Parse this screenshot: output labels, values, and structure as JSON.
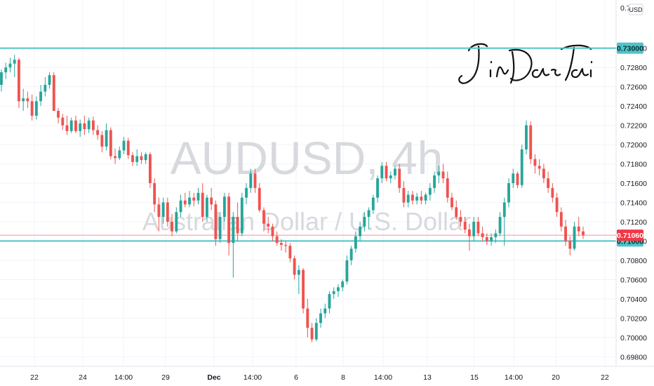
{
  "chart_data": {
    "type": "candlestick",
    "symbol": "AUDUSD",
    "interval": "4h",
    "watermark_symbol": "AUDUSD, 4h",
    "watermark_description": "Australian Dollar / U.S. Dollar",
    "currency": "USD",
    "y_axis": {
      "range": [
        0.697,
        0.735
      ],
      "ticks": [
        "0.69800",
        "0.70000",
        "0.70200",
        "0.70400",
        "0.70600",
        "0.70800",
        "0.71000",
        "0.71200",
        "0.71400",
        "0.71600",
        "0.71800",
        "0.72000",
        "0.72200",
        "0.72400",
        "0.72600",
        "0.72800",
        "0.73000"
      ],
      "top_partial_label": "0.7"
    },
    "x_axis_labels": [
      {
        "text": "22",
        "bold": false
      },
      {
        "text": "24",
        "bold": false
      },
      {
        "text": "14:00",
        "bold": false
      },
      {
        "text": "29",
        "bold": false
      },
      {
        "text": "Dec",
        "bold": true
      },
      {
        "text": "14:00",
        "bold": false
      },
      {
        "text": "6",
        "bold": false
      },
      {
        "text": "8",
        "bold": false
      },
      {
        "text": "14:00",
        "bold": false
      },
      {
        "text": "13",
        "bold": false
      },
      {
        "text": "15",
        "bold": false
      },
      {
        "text": "14:00",
        "bold": false
      },
      {
        "text": "20",
        "bold": false
      },
      {
        "text": "22",
        "bold": false
      }
    ],
    "horizontal_lines": [
      {
        "price": 0.73,
        "label": "0.73000",
        "color": "#4fc3c8"
      },
      {
        "price": 0.71,
        "label": "0.71000",
        "color": "#4fc3c8"
      }
    ],
    "current_price": {
      "price": 0.7106,
      "label": "0.71060",
      "color": "#f23645"
    },
    "candle_colors": {
      "up": "#26a69a",
      "down": "#ef5350"
    },
    "candles": [
      [
        0.7262,
        0.7278,
        0.7255,
        0.7275
      ],
      [
        0.7275,
        0.7285,
        0.7268,
        0.728
      ],
      [
        0.728,
        0.729,
        0.7275,
        0.7284
      ],
      [
        0.7284,
        0.7293,
        0.727,
        0.7288
      ],
      [
        0.7288,
        0.729,
        0.7238,
        0.7245
      ],
      [
        0.7245,
        0.7258,
        0.7235,
        0.7248
      ],
      [
        0.7248,
        0.7255,
        0.7238,
        0.7245
      ],
      [
        0.7245,
        0.7252,
        0.7225,
        0.723
      ],
      [
        0.723,
        0.725,
        0.7226,
        0.7245
      ],
      [
        0.7245,
        0.7262,
        0.724,
        0.7255
      ],
      [
        0.7255,
        0.727,
        0.725,
        0.7262
      ],
      [
        0.7262,
        0.7275,
        0.7258,
        0.7272
      ],
      [
        0.7272,
        0.7275,
        0.7235,
        0.7235
      ],
      [
        0.7235,
        0.7238,
        0.7222,
        0.7228
      ],
      [
        0.7228,
        0.7232,
        0.7215,
        0.722
      ],
      [
        0.722,
        0.723,
        0.721,
        0.7214
      ],
      [
        0.7214,
        0.7228,
        0.7212,
        0.7225
      ],
      [
        0.7225,
        0.723,
        0.7212,
        0.7214
      ],
      [
        0.7214,
        0.7226,
        0.7208,
        0.7222
      ],
      [
        0.7222,
        0.723,
        0.721,
        0.7216
      ],
      [
        0.7216,
        0.7228,
        0.7212,
        0.7225
      ],
      [
        0.7225,
        0.7229,
        0.721,
        0.7215
      ],
      [
        0.7215,
        0.722,
        0.7205,
        0.721
      ],
      [
        0.721,
        0.7214,
        0.7192,
        0.7198
      ],
      [
        0.7198,
        0.7222,
        0.7194,
        0.7215
      ],
      [
        0.7215,
        0.7218,
        0.7185,
        0.7188
      ],
      [
        0.7188,
        0.7196,
        0.718,
        0.7186
      ],
      [
        0.7186,
        0.7198,
        0.7184,
        0.7194
      ],
      [
        0.7194,
        0.7208,
        0.719,
        0.7204
      ],
      [
        0.7204,
        0.7207,
        0.7185,
        0.7189
      ],
      [
        0.7189,
        0.7192,
        0.7178,
        0.7182
      ],
      [
        0.7182,
        0.7195,
        0.7178,
        0.7188
      ],
      [
        0.7188,
        0.7192,
        0.718,
        0.7184
      ],
      [
        0.7184,
        0.7192,
        0.718,
        0.719
      ],
      [
        0.719,
        0.7192,
        0.7155,
        0.716
      ],
      [
        0.716,
        0.7165,
        0.713,
        0.7138
      ],
      [
        0.7138,
        0.7145,
        0.711,
        0.7125
      ],
      [
        0.7125,
        0.7145,
        0.7118,
        0.714
      ],
      [
        0.714,
        0.7145,
        0.7115,
        0.712
      ],
      [
        0.712,
        0.7128,
        0.7105,
        0.711
      ],
      [
        0.711,
        0.7135,
        0.7108,
        0.713
      ],
      [
        0.713,
        0.7148,
        0.7125,
        0.7142
      ],
      [
        0.7142,
        0.715,
        0.7135,
        0.7138
      ],
      [
        0.7138,
        0.7152,
        0.7135,
        0.7145
      ],
      [
        0.7145,
        0.715,
        0.7136,
        0.7142
      ],
      [
        0.7142,
        0.7155,
        0.7138,
        0.715
      ],
      [
        0.715,
        0.716,
        0.712,
        0.7125
      ],
      [
        0.7125,
        0.7148,
        0.712,
        0.7145
      ],
      [
        0.7145,
        0.7155,
        0.7132,
        0.7138
      ],
      [
        0.7138,
        0.7142,
        0.7095,
        0.7102
      ],
      [
        0.7102,
        0.713,
        0.7098,
        0.7125
      ],
      [
        0.7125,
        0.715,
        0.712,
        0.7146
      ],
      [
        0.7146,
        0.715,
        0.7085,
        0.7098
      ],
      [
        0.7098,
        0.713,
        0.7062,
        0.7125
      ],
      [
        0.7125,
        0.714,
        0.71,
        0.7108
      ],
      [
        0.7108,
        0.715,
        0.7105,
        0.7145
      ],
      [
        0.7145,
        0.716,
        0.7138,
        0.7155
      ],
      [
        0.7155,
        0.7175,
        0.715,
        0.717
      ],
      [
        0.717,
        0.7175,
        0.715,
        0.7155
      ],
      [
        0.7155,
        0.716,
        0.713,
        0.7132
      ],
      [
        0.7132,
        0.7135,
        0.711,
        0.7118
      ],
      [
        0.7118,
        0.7125,
        0.7108,
        0.7115
      ],
      [
        0.7115,
        0.7118,
        0.71,
        0.7105
      ],
      [
        0.7105,
        0.711,
        0.7095,
        0.7098
      ],
      [
        0.7098,
        0.7102,
        0.709,
        0.7096
      ],
      [
        0.7096,
        0.71,
        0.7088,
        0.7095
      ],
      [
        0.7095,
        0.7098,
        0.7078,
        0.7082
      ],
      [
        0.7082,
        0.7085,
        0.706,
        0.7065
      ],
      [
        0.7065,
        0.7075,
        0.7045,
        0.707
      ],
      [
        0.707,
        0.7072,
        0.7025,
        0.703
      ],
      [
        0.703,
        0.704,
        0.7,
        0.701
      ],
      [
        0.701,
        0.7015,
        0.6995,
        0.6998
      ],
      [
        0.6998,
        0.702,
        0.6996,
        0.7015
      ],
      [
        0.7015,
        0.703,
        0.701,
        0.7025
      ],
      [
        0.7025,
        0.7035,
        0.702,
        0.703
      ],
      [
        0.703,
        0.7048,
        0.7025,
        0.7045
      ],
      [
        0.7045,
        0.7052,
        0.704,
        0.7048
      ],
      [
        0.7048,
        0.7055,
        0.7042,
        0.7052
      ],
      [
        0.7052,
        0.706,
        0.7048,
        0.7058
      ],
      [
        0.7058,
        0.7085,
        0.7055,
        0.708
      ],
      [
        0.708,
        0.7095,
        0.7075,
        0.7092
      ],
      [
        0.7092,
        0.711,
        0.7088,
        0.7105
      ],
      [
        0.7105,
        0.712,
        0.71,
        0.7115
      ],
      [
        0.7115,
        0.713,
        0.711,
        0.7125
      ],
      [
        0.7125,
        0.7135,
        0.7112,
        0.7132
      ],
      [
        0.7132,
        0.7148,
        0.7128,
        0.7145
      ],
      [
        0.7145,
        0.7168,
        0.714,
        0.7165
      ],
      [
        0.7165,
        0.7182,
        0.716,
        0.7178
      ],
      [
        0.7178,
        0.7182,
        0.7162,
        0.7165
      ],
      [
        0.7165,
        0.7172,
        0.716,
        0.7168
      ],
      [
        0.7168,
        0.7178,
        0.7164,
        0.7175
      ],
      [
        0.7175,
        0.718,
        0.715,
        0.7155
      ],
      [
        0.7155,
        0.7162,
        0.7135,
        0.714
      ],
      [
        0.714,
        0.7152,
        0.7135,
        0.7148
      ],
      [
        0.7148,
        0.7152,
        0.7138,
        0.7142
      ],
      [
        0.7142,
        0.715,
        0.7138,
        0.7146
      ],
      [
        0.7146,
        0.7152,
        0.7138,
        0.7142
      ],
      [
        0.7142,
        0.715,
        0.7138,
        0.7148
      ],
      [
        0.7148,
        0.716,
        0.7142,
        0.7155
      ],
      [
        0.7155,
        0.7172,
        0.715,
        0.7168
      ],
      [
        0.7168,
        0.7178,
        0.716,
        0.7172
      ],
      [
        0.7172,
        0.718,
        0.716,
        0.7165
      ],
      [
        0.7165,
        0.7172,
        0.714,
        0.7145
      ],
      [
        0.7145,
        0.715,
        0.7132,
        0.7135
      ],
      [
        0.7135,
        0.7142,
        0.7122,
        0.7125
      ],
      [
        0.7125,
        0.7132,
        0.7115,
        0.712
      ],
      [
        0.712,
        0.7125,
        0.7108,
        0.7112
      ],
      [
        0.7112,
        0.7118,
        0.709,
        0.7105
      ],
      [
        0.7105,
        0.7125,
        0.71,
        0.712
      ],
      [
        0.712,
        0.7125,
        0.7105,
        0.7108
      ],
      [
        0.7108,
        0.7115,
        0.71,
        0.7104
      ],
      [
        0.7104,
        0.7108,
        0.7096,
        0.71
      ],
      [
        0.71,
        0.7108,
        0.7095,
        0.7104
      ],
      [
        0.7104,
        0.7112,
        0.7098,
        0.7108
      ],
      [
        0.7108,
        0.713,
        0.7105,
        0.7125
      ],
      [
        0.7125,
        0.7145,
        0.7095,
        0.714
      ],
      [
        0.714,
        0.7165,
        0.7135,
        0.716
      ],
      [
        0.716,
        0.7175,
        0.7155,
        0.717
      ],
      [
        0.717,
        0.7172,
        0.7155,
        0.7158
      ],
      [
        0.7158,
        0.72,
        0.7155,
        0.7195
      ],
      [
        0.7195,
        0.7225,
        0.719,
        0.722
      ],
      [
        0.722,
        0.7224,
        0.718,
        0.7185
      ],
      [
        0.7185,
        0.719,
        0.717,
        0.7178
      ],
      [
        0.7178,
        0.7185,
        0.7168,
        0.7175
      ],
      [
        0.7175,
        0.718,
        0.716,
        0.7165
      ],
      [
        0.7165,
        0.7172,
        0.715,
        0.7155
      ],
      [
        0.7155,
        0.716,
        0.714,
        0.7145
      ],
      [
        0.7145,
        0.715,
        0.7125,
        0.713
      ],
      [
        0.713,
        0.7135,
        0.711,
        0.7115
      ],
      [
        0.7115,
        0.7122,
        0.7095,
        0.71
      ],
      [
        0.71,
        0.7105,
        0.7085,
        0.7092
      ],
      [
        0.7092,
        0.712,
        0.709,
        0.7115
      ],
      [
        0.7115,
        0.7125,
        0.7105,
        0.711
      ],
      [
        0.711,
        0.7115,
        0.7102,
        0.7106
      ]
    ]
  }
}
